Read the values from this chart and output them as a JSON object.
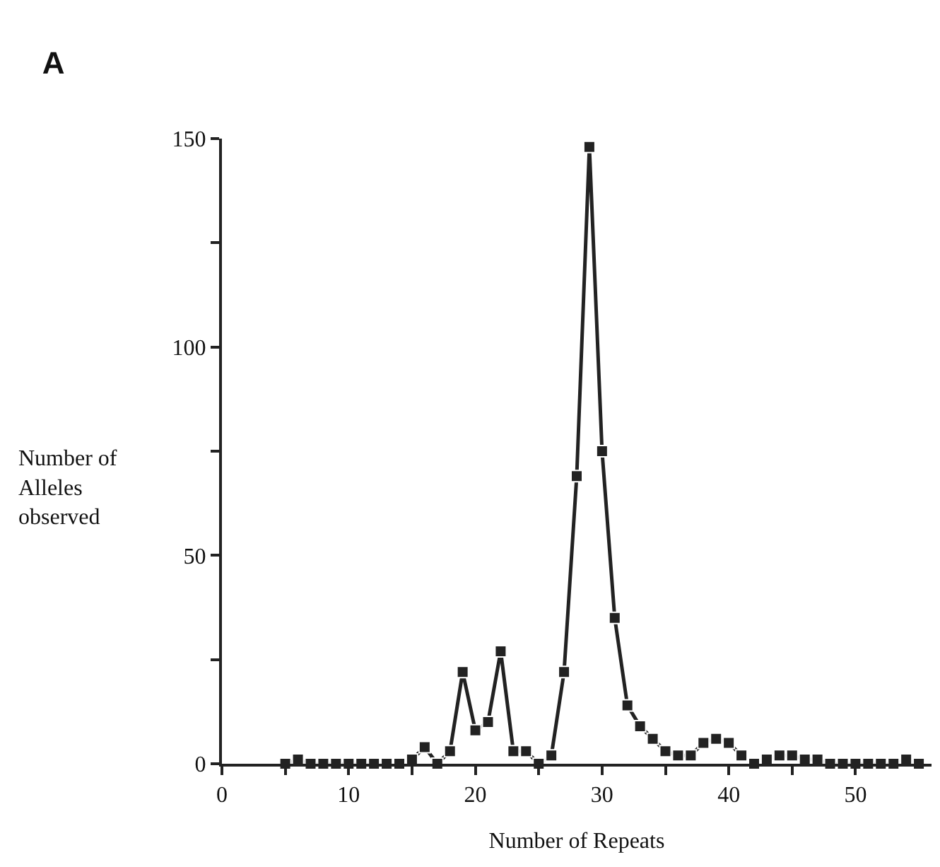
{
  "chart_data": {
    "type": "line",
    "title": "A",
    "xlabel": "Number of Repeats",
    "ylabel": "Number of\nAlleles\nobserved",
    "x": [
      5,
      6,
      7,
      8,
      9,
      10,
      11,
      12,
      13,
      14,
      15,
      16,
      17,
      18,
      19,
      20,
      21,
      22,
      23,
      24,
      25,
      26,
      27,
      28,
      29,
      30,
      31,
      32,
      33,
      34,
      35,
      36,
      37,
      38,
      39,
      40,
      41,
      42,
      43,
      44,
      45,
      46,
      47,
      48,
      49,
      50,
      51,
      52,
      53,
      54,
      55
    ],
    "series": [
      {
        "color": "#222222",
        "values": [
          0,
          1,
          0,
          0,
          0,
          0,
          0,
          0,
          0,
          0,
          1,
          4,
          0,
          3,
          22,
          8,
          10,
          27,
          3,
          3,
          0,
          2,
          22,
          69,
          148,
          75,
          35,
          14,
          9,
          6,
          3,
          2,
          2,
          5,
          6,
          5,
          2,
          0,
          1,
          2,
          2,
          1,
          1,
          0,
          0,
          0,
          0,
          0,
          0,
          1,
          0
        ]
      }
    ],
    "xlim": [
      0,
      56
    ],
    "xticks": [
      0,
      {
        "value": 5,
        "label": null
      },
      10,
      {
        "value": 15,
        "label": null
      },
      20,
      {
        "value": 25,
        "label": null
      },
      30,
      {
        "value": 35,
        "label": null
      },
      40,
      {
        "value": 45,
        "label": null
      },
      50
    ],
    "ylim": [
      0,
      150
    ],
    "yticks": [
      0,
      {
        "value": 25,
        "label": null
      },
      50,
      {
        "value": 75,
        "label": null
      },
      100,
      {
        "value": 125,
        "label": null
      },
      150
    ],
    "grid": false,
    "legend": false,
    "marker": "square",
    "line_style": "solid"
  }
}
